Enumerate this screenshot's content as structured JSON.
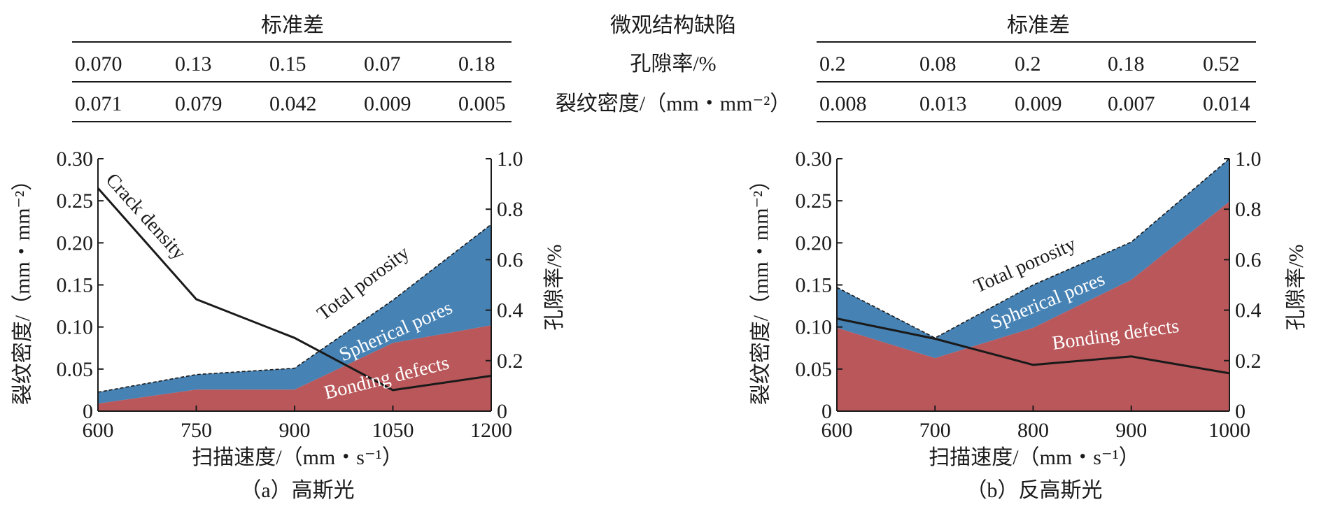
{
  "tables": {
    "left_header": "标准差",
    "middle_header": "微观结构缺陷",
    "right_header": "标准差",
    "row_labels": [
      "孔隙率/%",
      "裂纹密度/（mm・mm⁻²）"
    ],
    "left_rows": [
      [
        "0.070",
        "0.13",
        "0.15",
        "0.07",
        "0.18"
      ],
      [
        "0.071",
        "0.079",
        "0.042",
        "0.009",
        "0.005"
      ]
    ],
    "right_rows": [
      [
        "0.2",
        "0.08",
        "0.2",
        "0.18",
        "0.52"
      ],
      [
        "0.008",
        "0.013",
        "0.009",
        "0.007",
        "0.014"
      ]
    ]
  },
  "chart_data": [
    {
      "type": "area",
      "subtitle": "（a）高斯光",
      "xlabel": "扫描速度/（mm・s⁻¹）",
      "ylabel": "裂纹密度/（mm・mm⁻²）",
      "y2label": "孔隙率/%",
      "x": [
        600,
        750,
        900,
        1050,
        1200
      ],
      "xticks": [
        "600",
        "750",
        "900",
        "1050",
        "1200"
      ],
      "xlim": [
        600,
        1200
      ],
      "ylim": [
        0,
        0.3
      ],
      "yticks": [
        "0",
        "0.05",
        "0.10",
        "0.15",
        "0.20",
        "0.25",
        "0.30"
      ],
      "y2lim": [
        0,
        1.0
      ],
      "y2ticks": [
        "0",
        "0.2",
        "0.4",
        "0.6",
        "0.8",
        "1.0"
      ],
      "series": [
        {
          "name": "Bonding defects",
          "axis": "y2",
          "values": [
            0.03,
            0.085,
            0.085,
            0.27,
            0.34
          ],
          "color": "#b9575a"
        },
        {
          "name": "Spherical pores",
          "axis": "y2",
          "values": [
            0.045,
            0.06,
            0.085,
            0.17,
            0.4
          ],
          "color": "#4682b4"
        },
        {
          "name": "Total porosity",
          "axis": "y2",
          "values": [
            0.075,
            0.145,
            0.17,
            0.44,
            0.74
          ],
          "style": "dashed"
        },
        {
          "name": "Crack density",
          "axis": "y",
          "values": [
            0.265,
            0.133,
            0.087,
            0.025,
            0.042
          ],
          "color": "#1a1a1a"
        }
      ]
    },
    {
      "type": "area",
      "subtitle": "（b）反高斯光",
      "xlabel": "扫描速度/（mm・s⁻¹）",
      "ylabel": "裂纹密度/（mm・mm⁻²）",
      "y2label": "孔隙率/%",
      "x": [
        600,
        700,
        800,
        900,
        1000
      ],
      "xticks": [
        "600",
        "700",
        "800",
        "900",
        "1000"
      ],
      "xlim": [
        600,
        1000
      ],
      "ylim": [
        0,
        0.3
      ],
      "yticks": [
        "0",
        "0.05",
        "0.10",
        "0.15",
        "0.20",
        "0.25",
        "0.30"
      ],
      "y2lim": [
        0,
        1.0
      ],
      "y2ticks": [
        "0",
        "0.2",
        "0.4",
        "0.6",
        "0.8",
        "1.0"
      ],
      "series": [
        {
          "name": "Bonding defects",
          "axis": "y2",
          "values": [
            0.33,
            0.21,
            0.33,
            0.52,
            0.83
          ],
          "color": "#b9575a"
        },
        {
          "name": "Spherical pores",
          "axis": "y2",
          "values": [
            0.16,
            0.08,
            0.17,
            0.15,
            0.17
          ],
          "color": "#4682b4"
        },
        {
          "name": "Total porosity",
          "axis": "y2",
          "values": [
            0.49,
            0.29,
            0.5,
            0.67,
            1.0
          ],
          "style": "dashed"
        },
        {
          "name": "",
          "axis": "y",
          "values": [
            0.11,
            0.086,
            0.055,
            0.065,
            0.045
          ],
          "color": "#1a1a1a"
        }
      ]
    }
  ]
}
